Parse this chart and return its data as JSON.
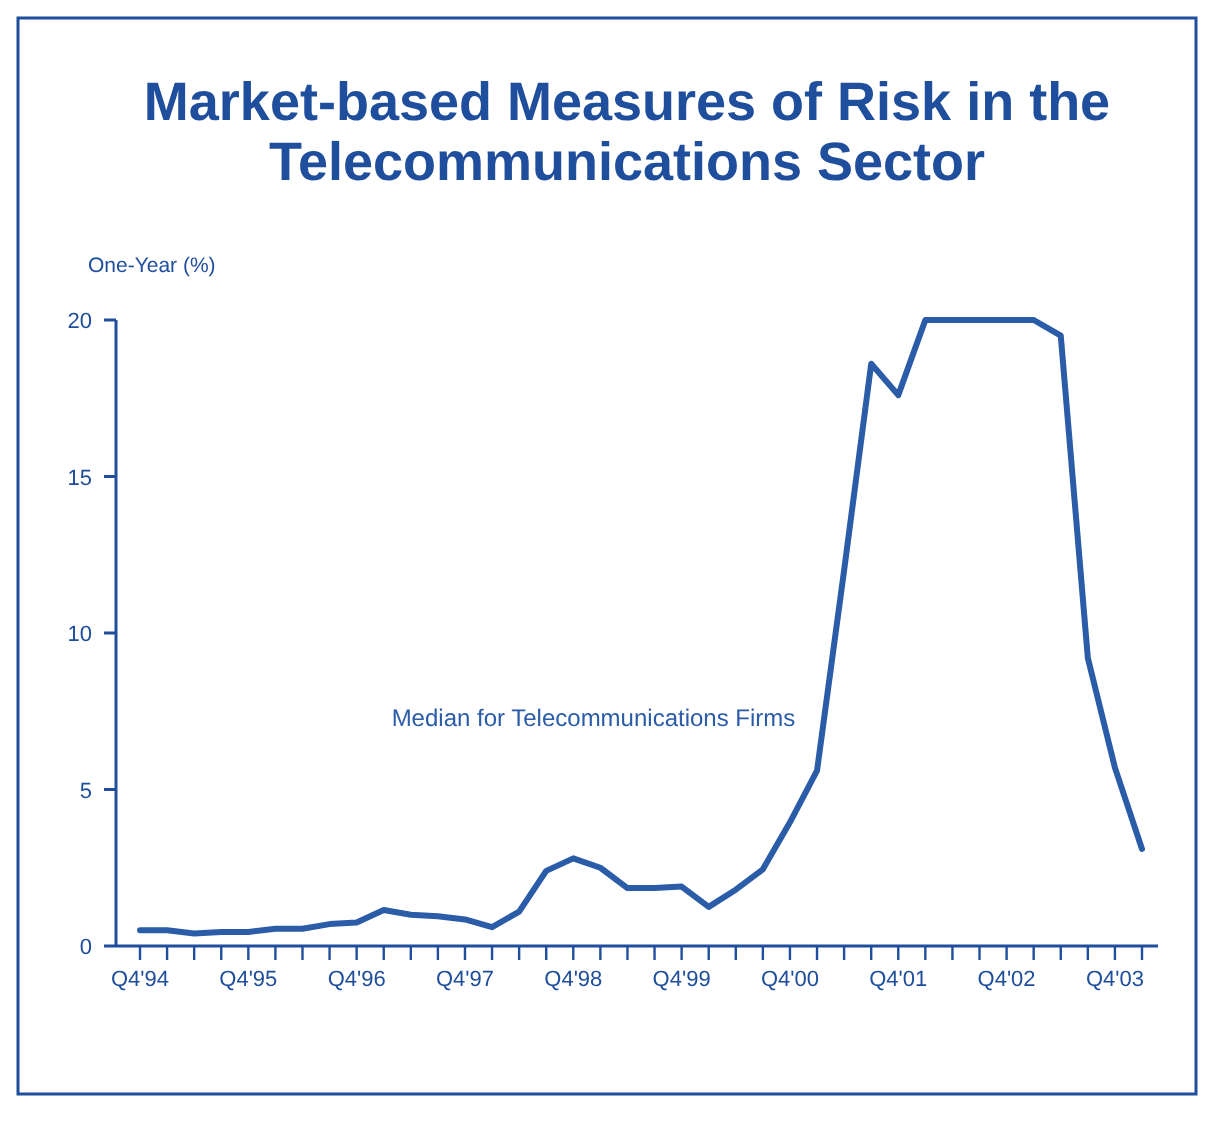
{
  "chart_data": {
    "type": "line",
    "title": "Market-based Measures of Risk in the Telecommunications Sector",
    "ylabel": "One-Year (%)",
    "categories": [
      "Q4'94",
      null,
      null,
      null,
      "Q4'95",
      null,
      null,
      null,
      "Q4'96",
      null,
      null,
      null,
      "Q4'97",
      null,
      null,
      null,
      "Q4'98",
      null,
      null,
      null,
      "Q4'99",
      null,
      null,
      null,
      "Q4'00",
      null,
      null,
      null,
      "Q4'01",
      null,
      null,
      null,
      "Q4'02",
      null,
      null,
      null,
      "Q4'03",
      null
    ],
    "series": [
      {
        "name": "Median for Telecommunications Firms",
        "color": "#2a5ca8",
        "values": [
          0.5,
          0.5,
          0.4,
          0.45,
          0.45,
          0.55,
          0.55,
          0.7,
          0.75,
          1.15,
          1.0,
          0.95,
          0.85,
          0.6,
          1.1,
          2.4,
          2.8,
          2.5,
          1.85,
          1.85,
          1.9,
          1.25,
          1.8,
          2.45,
          3.95,
          5.6,
          12,
          18.6,
          17.6,
          20,
          20,
          20,
          20,
          20,
          19.5,
          9.2,
          5.7,
          3.1
        ]
      }
    ],
    "ylim": [
      0,
      20
    ],
    "yticks": [
      0,
      5,
      10,
      15,
      20
    ],
    "grid": false,
    "marker": "none",
    "line_style": "solid"
  }
}
